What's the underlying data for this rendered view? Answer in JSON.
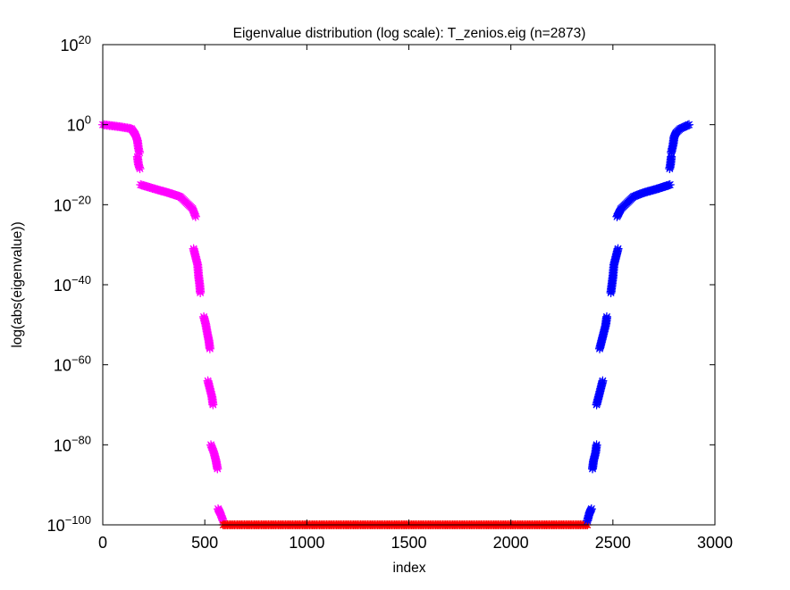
{
  "chart_data": {
    "type": "scatter",
    "title": "Eigenvalue distribution (log scale): T_zenios.eig (n=2873)",
    "xlabel": "index",
    "ylabel": "log(abs(eigenvalue))",
    "xlim": [
      0,
      3000
    ],
    "ylim_exponent": [
      -100,
      20
    ],
    "y_scale": "log",
    "grid": false,
    "marker": "*",
    "x_ticks": [
      "0",
      "500",
      "1000",
      "1500",
      "2000",
      "2500",
      "3000"
    ],
    "y_ticks": [
      {
        "base": "10",
        "exp": "20"
      },
      {
        "base": "10",
        "exp": "0"
      },
      {
        "base": "10",
        "exp": "−20"
      },
      {
        "base": "10",
        "exp": "−40"
      },
      {
        "base": "10",
        "exp": "−60"
      },
      {
        "base": "10",
        "exp": "−80"
      },
      {
        "base": "10",
        "exp": "−100"
      }
    ],
    "series": [
      {
        "color": "#ff00ff",
        "segments": [
          [
            [
              0,
              0
            ],
            [
              80,
              -0.5
            ],
            [
              140,
              -1
            ],
            [
              160,
              -2.5
            ],
            [
              170,
              -4
            ],
            [
              175,
              -6
            ],
            [
              180,
              -7
            ]
          ],
          [
            [
              170,
              -8
            ],
            [
              175,
              -10
            ],
            [
              182,
              -11
            ]
          ],
          [
            [
              185,
              -15
            ],
            [
              250,
              -16
            ],
            [
              320,
              -17
            ],
            [
              380,
              -18
            ],
            [
              420,
              -20
            ],
            [
              440,
              -21
            ],
            [
              455,
              -23
            ]
          ],
          [
            [
              445,
              -31
            ],
            [
              455,
              -33
            ],
            [
              465,
              -35
            ],
            [
              470,
              -38
            ],
            [
              475,
              -40
            ],
            [
              478,
              -42
            ]
          ],
          [
            [
              495,
              -48
            ],
            [
              505,
              -50
            ],
            [
              512,
              -52
            ],
            [
              520,
              -54
            ],
            [
              525,
              -56
            ]
          ],
          [
            [
              515,
              -64
            ],
            [
              525,
              -66
            ],
            [
              535,
              -68
            ],
            [
              540,
              -70
            ]
          ],
          [
            [
              530,
              -80
            ],
            [
              545,
              -82
            ],
            [
              555,
              -84
            ],
            [
              562,
              -86
            ]
          ],
          [
            [
              565,
              -96
            ],
            [
              575,
              -97
            ],
            [
              590,
              -99
            ]
          ]
        ]
      },
      {
        "color": "#ff0000",
        "segments": [
          [
            [
              590,
              -100
            ],
            [
              1000,
              -100
            ],
            [
              1500,
              -100
            ],
            [
              2000,
              -100
            ],
            [
              2375,
              -100
            ]
          ]
        ]
      },
      {
        "color": "#0000ff",
        "segments": [
          [
            [
              2375,
              -99
            ],
            [
              2385,
              -97
            ],
            [
              2395,
              -96
            ]
          ],
          [
            [
              2400,
              -86
            ],
            [
              2405,
              -84
            ],
            [
              2415,
              -82
            ],
            [
              2420,
              -80
            ]
          ],
          [
            [
              2420,
              -70
            ],
            [
              2430,
              -68
            ],
            [
              2440,
              -66
            ],
            [
              2450,
              -64
            ]
          ],
          [
            [
              2435,
              -56
            ],
            [
              2445,
              -54
            ],
            [
              2455,
              -52
            ],
            [
              2465,
              -50
            ],
            [
              2470,
              -48
            ]
          ],
          [
            [
              2490,
              -42
            ],
            [
              2495,
              -40
            ],
            [
              2500,
              -38
            ],
            [
              2505,
              -35
            ],
            [
              2515,
              -33
            ],
            [
              2525,
              -31
            ]
          ],
          [
            [
              2520,
              -23
            ],
            [
              2540,
              -21
            ],
            [
              2560,
              -20
            ],
            [
              2600,
              -18
            ],
            [
              2650,
              -17
            ],
            [
              2720,
              -16
            ],
            [
              2780,
              -15
            ]
          ],
          [
            [
              2778,
              -11
            ],
            [
              2782,
              -10
            ],
            [
              2786,
              -8
            ]
          ],
          [
            [
              2786,
              -7
            ],
            [
              2795,
              -5
            ],
            [
              2800,
              -3
            ],
            [
              2810,
              -2
            ],
            [
              2830,
              -1
            ],
            [
              2873,
              0
            ]
          ]
        ]
      }
    ]
  }
}
